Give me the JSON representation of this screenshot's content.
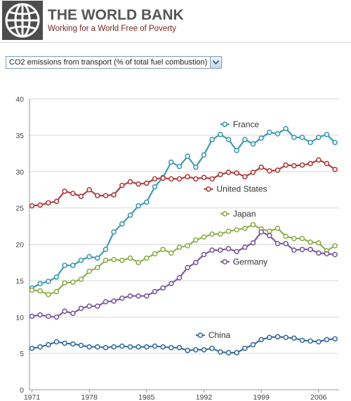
{
  "header": {
    "title": "THE WORLD BANK",
    "tagline": "Working for a World Free of Poverty",
    "logo_icon": "globe-logo-icon"
  },
  "indicator": {
    "selected": "CO2 emissions from transport (% of total fuel combustion)",
    "dropdown_icon": "chevron-down-icon"
  },
  "chart_data": {
    "type": "line",
    "title": "",
    "xlabel": "",
    "ylabel": "",
    "xlim": [
      1971,
      2008
    ],
    "ylim": [
      0,
      40
    ],
    "yticks": [
      0,
      5,
      10,
      15,
      20,
      25,
      30,
      35,
      40
    ],
    "xticks": [
      1971,
      1978,
      1985,
      1992,
      1999,
      2006
    ],
    "grid": "horizontal",
    "legend": "inline labels",
    "x": [
      1971,
      1972,
      1973,
      1974,
      1975,
      1976,
      1977,
      1978,
      1979,
      1980,
      1981,
      1982,
      1983,
      1984,
      1985,
      1986,
      1987,
      1988,
      1989,
      1990,
      1991,
      1992,
      1993,
      1994,
      1995,
      1996,
      1997,
      1998,
      1999,
      2000,
      2001,
      2002,
      2003,
      2004,
      2005,
      2006,
      2007,
      2008
    ],
    "series": [
      {
        "name": "France",
        "color": "#3f9bb3",
        "values": [
          14.0,
          14.6,
          14.9,
          15.5,
          17.1,
          17.1,
          17.8,
          18.3,
          18.1,
          19.3,
          21.7,
          22.8,
          24.0,
          25.3,
          25.8,
          27.9,
          29.2,
          31.3,
          30.7,
          32.1,
          30.6,
          32.3,
          34.4,
          35.1,
          34.4,
          32.9,
          34.4,
          33.8,
          34.6,
          35.4,
          35.2,
          35.9,
          34.7,
          34.7,
          34.0,
          34.7,
          35.1,
          34.0
        ]
      },
      {
        "name": "United States",
        "color": "#b03e3e",
        "values": [
          25.3,
          25.4,
          25.7,
          25.9,
          27.3,
          27.0,
          26.6,
          27.5,
          26.7,
          26.7,
          26.8,
          28.1,
          28.6,
          28.3,
          28.4,
          29.0,
          29.1,
          29.0,
          29.0,
          29.3,
          29.0,
          29.2,
          29.0,
          29.6,
          29.9,
          29.8,
          29.3,
          29.9,
          30.6,
          30.1,
          30.2,
          30.9,
          30.8,
          30.9,
          31.1,
          31.6,
          31.1,
          30.3
        ]
      },
      {
        "name": "Japan",
        "color": "#8fae4b",
        "values": [
          13.7,
          13.6,
          13.1,
          13.5,
          14.7,
          14.8,
          15.2,
          16.3,
          16.8,
          17.8,
          17.9,
          17.8,
          18.1,
          17.5,
          18.1,
          18.7,
          19.3,
          18.8,
          19.6,
          19.8,
          20.6,
          21.0,
          21.4,
          21.4,
          21.8,
          22.0,
          22.2,
          22.7,
          22.1,
          21.8,
          22.2,
          21.1,
          20.8,
          20.8,
          20.3,
          20.2,
          19.1,
          19.8
        ]
      },
      {
        "name": "Germany",
        "color": "#7d5a9f",
        "values": [
          10.1,
          10.3,
          10.1,
          10.0,
          10.8,
          10.5,
          11.2,
          11.5,
          11.5,
          12.1,
          12.2,
          12.6,
          12.9,
          12.9,
          12.9,
          13.5,
          14.0,
          14.6,
          15.4,
          16.8,
          17.5,
          18.6,
          19.2,
          19.2,
          19.4,
          19.0,
          19.6,
          20.2,
          21.7,
          21.2,
          20.1,
          20.1,
          19.2,
          19.3,
          19.3,
          18.8,
          18.7,
          18.6
        ]
      },
      {
        "name": "China",
        "color": "#3a6fa0",
        "values": [
          5.7,
          5.9,
          6.2,
          6.6,
          6.4,
          6.3,
          6.1,
          5.9,
          5.9,
          5.8,
          5.9,
          6.0,
          5.9,
          5.9,
          5.9,
          6.0,
          5.9,
          5.8,
          5.8,
          5.4,
          5.5,
          5.5,
          5.7,
          5.2,
          5.1,
          5.1,
          5.7,
          6.2,
          6.9,
          7.2,
          7.3,
          7.2,
          7.1,
          6.8,
          6.7,
          6.6,
          6.9,
          7.0
        ]
      }
    ]
  }
}
